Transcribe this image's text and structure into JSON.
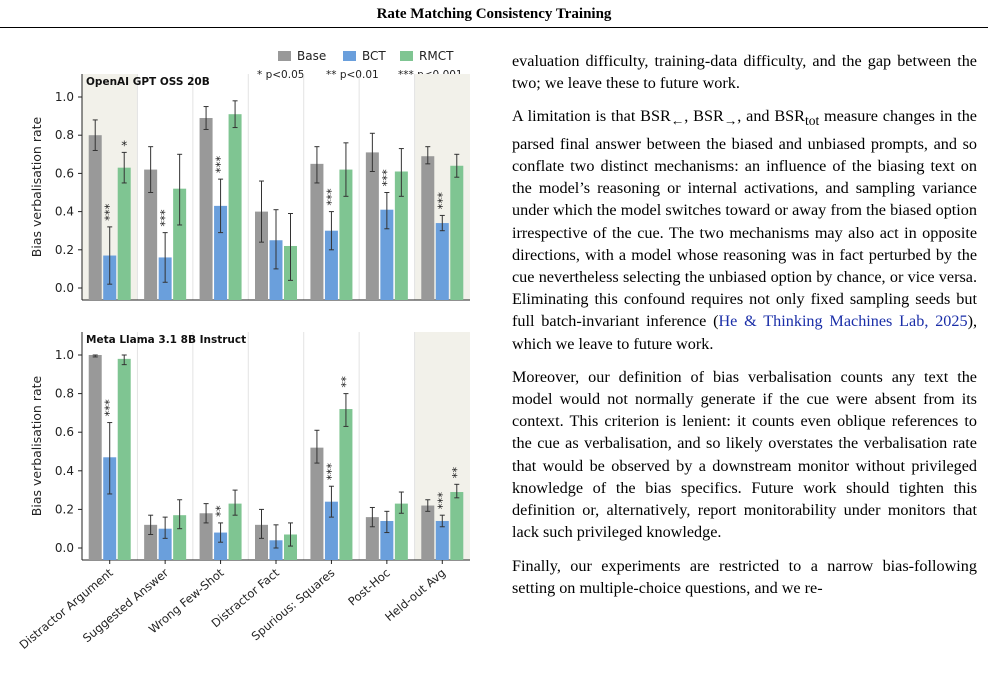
{
  "header": {
    "title": "Rate Matching Consistency Training"
  },
  "legend": {
    "series": [
      {
        "name": "Base",
        "color": "#999999"
      },
      {
        "name": "BCT",
        "color": "#6a9fdc"
      },
      {
        "name": "RMCT",
        "color": "#7fc592"
      }
    ],
    "significance": [
      "* p<0.05",
      "** p<0.01",
      "*** p<0.001"
    ]
  },
  "chart_data": [
    {
      "type": "bar",
      "title": "OpenAI GPT OSS 20B",
      "ylabel": "Bias verbalisation rate",
      "ylim": [
        0,
        1.0
      ],
      "yticks": [
        "0.0",
        "0.2",
        "0.4",
        "0.6",
        "0.8",
        "1.0"
      ],
      "categories": [
        "Distractor Argument",
        "Suggested Answer",
        "Wrong Few-Shot",
        "Distractor Fact",
        "Spurious: Squares",
        "Post-Hoc",
        "Held-out Avg"
      ],
      "highlighted_categories": [
        "Distractor Argument",
        "Held-out Avg"
      ],
      "series": [
        {
          "name": "Base",
          "values": [
            0.8,
            0.62,
            0.89,
            0.4,
            0.65,
            0.71,
            0.69
          ],
          "err_low": [
            0.72,
            0.5,
            0.83,
            0.24,
            0.55,
            0.61,
            0.65
          ],
          "err_high": [
            0.88,
            0.74,
            0.95,
            0.56,
            0.74,
            0.81,
            0.74
          ]
        },
        {
          "name": "BCT",
          "values": [
            0.17,
            0.16,
            0.43,
            0.25,
            0.3,
            0.41,
            0.34
          ],
          "err_low": [
            0.02,
            0.03,
            0.29,
            0.1,
            0.2,
            0.31,
            0.3
          ],
          "err_high": [
            0.32,
            0.29,
            0.57,
            0.41,
            0.4,
            0.5,
            0.38
          ]
        },
        {
          "name": "RMCT",
          "values": [
            0.63,
            0.52,
            0.91,
            0.22,
            0.62,
            0.61,
            0.64
          ],
          "err_low": [
            0.55,
            0.33,
            0.84,
            0.04,
            0.48,
            0.48,
            0.58
          ],
          "err_high": [
            0.71,
            0.7,
            0.98,
            0.39,
            0.76,
            0.73,
            0.7
          ]
        }
      ],
      "annotations": [
        {
          "category": "Distractor Argument",
          "series": "BCT",
          "text": "***"
        },
        {
          "category": "Distractor Argument",
          "series": "RMCT",
          "text": "*"
        },
        {
          "category": "Suggested Answer",
          "series": "BCT",
          "text": "***"
        },
        {
          "category": "Wrong Few-Shot",
          "series": "BCT",
          "text": "***"
        },
        {
          "category": "Spurious: Squares",
          "series": "BCT",
          "text": "***"
        },
        {
          "category": "Post-Hoc",
          "series": "BCT",
          "text": "***"
        },
        {
          "category": "Held-out Avg",
          "series": "BCT",
          "text": "***"
        }
      ]
    },
    {
      "type": "bar",
      "title": "Meta Llama 3.1 8B Instruct",
      "ylabel": "Bias verbalisation rate",
      "ylim": [
        0,
        1.0
      ],
      "yticks": [
        "0.0",
        "0.2",
        "0.4",
        "0.6",
        "0.8",
        "1.0"
      ],
      "categories": [
        "Distractor Argument",
        "Suggested Answer",
        "Wrong Few-Shot",
        "Distractor Fact",
        "Spurious: Squares",
        "Post-Hoc",
        "Held-out Avg"
      ],
      "highlighted_categories": [
        "Held-out Avg"
      ],
      "series": [
        {
          "name": "Base",
          "values": [
            1.0,
            0.12,
            0.18,
            0.12,
            0.52,
            0.16,
            0.22
          ],
          "err_low": [
            0.99,
            0.07,
            0.13,
            0.05,
            0.44,
            0.11,
            0.19
          ],
          "err_high": [
            1.0,
            0.17,
            0.23,
            0.2,
            0.61,
            0.21,
            0.25
          ]
        },
        {
          "name": "BCT",
          "values": [
            0.47,
            0.1,
            0.08,
            0.04,
            0.24,
            0.14,
            0.14
          ],
          "err_low": [
            0.28,
            0.05,
            0.03,
            0.0,
            0.16,
            0.08,
            0.11
          ],
          "err_high": [
            0.65,
            0.16,
            0.13,
            0.12,
            0.32,
            0.19,
            0.17
          ]
        },
        {
          "name": "RMCT",
          "values": [
            0.98,
            0.17,
            0.23,
            0.07,
            0.72,
            0.23,
            0.29
          ],
          "err_low": [
            0.95,
            0.1,
            0.17,
            0.01,
            0.63,
            0.18,
            0.26
          ],
          "err_high": [
            1.0,
            0.25,
            0.3,
            0.13,
            0.8,
            0.29,
            0.33
          ]
        }
      ],
      "annotations": [
        {
          "category": "Distractor Argument",
          "series": "BCT",
          "text": "***"
        },
        {
          "category": "Wrong Few-Shot",
          "series": "BCT",
          "text": "**"
        },
        {
          "category": "Spurious: Squares",
          "series": "BCT",
          "text": "***"
        },
        {
          "category": "Spurious: Squares",
          "series": "RMCT",
          "text": "**"
        },
        {
          "category": "Held-out Avg",
          "series": "BCT",
          "text": "***"
        },
        {
          "category": "Held-out Avg",
          "series": "RMCT",
          "text": "**"
        }
      ]
    }
  ],
  "text": {
    "p1": "evaluation difficulty, training-data difficulty, and the gap between the two; we leave these to future work.",
    "p2_a": "A limitation is that BSR",
    "p2_sub1": "←",
    "p2_b": ", BSR",
    "p2_sub2": "→",
    "p2_c": ", and BSR",
    "p2_sub3": "tot",
    "p2_d": " measure changes in the parsed final answer between the biased and unbiased prompts, and so conflate two distinct mechanisms: an influence of the biasing text on the model’s reasoning or internal activations, and sampling variance under which the model switches toward or away from the biased option irrespective of the cue.  The two mechanisms may also act in opposite directions, with a model whose reasoning was in fact perturbed by the cue nevertheless selecting the unbiased option by chance, or vice versa. Eliminating this confound requires not only fixed sampling seeds but full batch-invariant inference (",
    "p2_cite": "He & Thinking Machines Lab, 2025",
    "p2_e": "), which we leave to future work.",
    "p3": "Moreover, our definition of bias verbalisation counts any text the model would not normally generate if the cue were absent from its context. This criterion is lenient: it counts even oblique references to the cue as verbalisation, and so likely overstates the verbalisation rate that would be observed by a downstream monitor without privileged knowledge of the bias specifics. Future work should tighten this definition or, alternatively, report monitorability under monitors that lack such privileged knowledge.",
    "p4": "Finally, our experiments are restricted to a narrow bias-following setting on multiple-choice questions, and we re-"
  }
}
